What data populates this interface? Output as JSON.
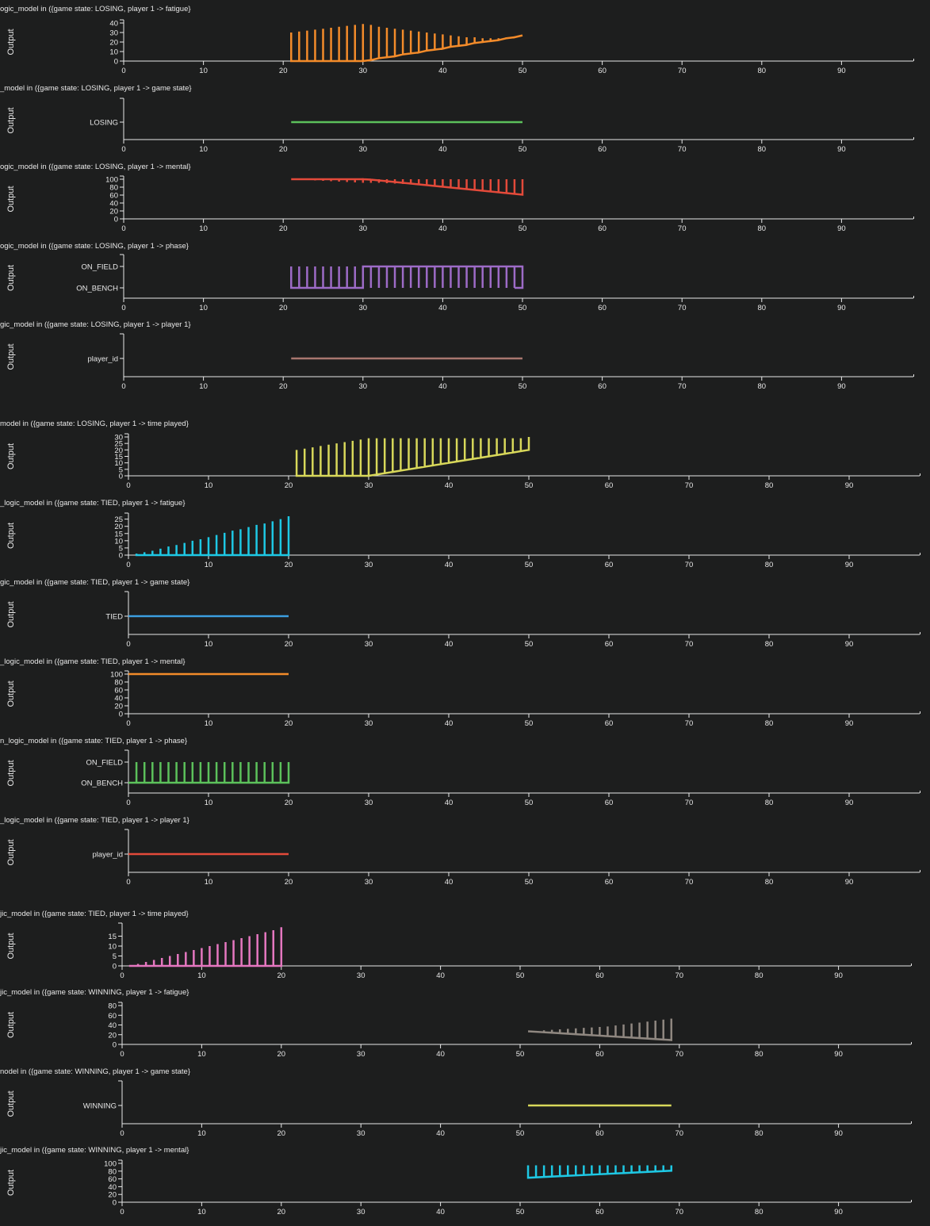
{
  "colors": {
    "background": "#1d1e1e",
    "axis": "#e8e8e8",
    "text": "#e8e8e8"
  },
  "chart_data": [
    {
      "id": "losing-fatigue",
      "type": "line",
      "title": "ogic_model in ({game state: LOSING, player 1 -> fatigue}",
      "ylabel": "Output",
      "xlim": [
        0,
        99
      ],
      "xticks": [
        0,
        10,
        20,
        30,
        40,
        50,
        60,
        70,
        80,
        90
      ],
      "ylim": [
        0,
        40
      ],
      "yticks": [
        0,
        10,
        20,
        30,
        40
      ],
      "color": "#f38b2a",
      "series": [
        {
          "x": [
            21,
            22,
            23,
            24,
            25,
            26,
            27,
            28,
            29,
            30,
            31,
            32,
            33,
            34,
            35,
            36,
            37,
            38,
            39,
            40,
            41,
            42,
            43,
            44,
            45,
            46,
            47,
            48,
            49,
            50
          ],
          "base": [
            0,
            0,
            0,
            0,
            0,
            0,
            0,
            0,
            0,
            0,
            1,
            3,
            4,
            5,
            7,
            8,
            9,
            11,
            12,
            13,
            15,
            16,
            17,
            19,
            20,
            21,
            22,
            24,
            25,
            27
          ],
          "peak": [
            30,
            31,
            32,
            33,
            34,
            35,
            36,
            37,
            38,
            39,
            38,
            36,
            35,
            34,
            33,
            32,
            31,
            30,
            29,
            28,
            27,
            26,
            25,
            25,
            24,
            24,
            24,
            25,
            26,
            27
          ]
        }
      ]
    },
    {
      "id": "losing-game-state",
      "type": "line",
      "title": "_model in ({game state: LOSING, player 1 -> game state}",
      "ylabel": "Output",
      "xlim": [
        0,
        99
      ],
      "xticks": [
        0,
        10,
        20,
        30,
        40,
        50,
        60,
        70,
        80,
        90
      ],
      "categories": [
        "LOSING"
      ],
      "color": "#5cc15b",
      "series": [
        {
          "x": [
            21,
            50
          ],
          "value": "LOSING"
        }
      ]
    },
    {
      "id": "losing-mental",
      "type": "line",
      "title": "ogic_model in ({game state: LOSING, player 1 -> mental}",
      "ylabel": "Output",
      "xlim": [
        0,
        99
      ],
      "xticks": [
        0,
        10,
        20,
        30,
        40,
        50,
        60,
        70,
        80,
        90
      ],
      "ylim": [
        0,
        100
      ],
      "yticks": [
        0,
        20,
        40,
        60,
        80,
        100
      ],
      "color": "#e34a3a",
      "series": [
        {
          "x": [
            21,
            22,
            23,
            24,
            25,
            26,
            27,
            28,
            29,
            30,
            31,
            32,
            33,
            34,
            35,
            36,
            37,
            38,
            39,
            40,
            41,
            42,
            43,
            44,
            45,
            46,
            47,
            48,
            49,
            50
          ],
          "base": [
            100,
            100,
            100,
            100,
            100,
            100,
            100,
            100,
            100,
            100,
            99,
            97,
            95,
            93,
            91,
            89,
            87,
            85,
            83,
            81,
            79,
            77,
            75,
            73,
            71,
            69,
            67,
            65,
            63,
            61
          ],
          "dip": [
            100,
            99,
            98,
            97,
            96,
            95,
            94,
            93,
            92,
            91,
            91,
            91,
            90,
            89,
            88,
            87,
            86,
            85,
            83,
            81,
            79,
            77,
            75,
            73,
            71,
            69,
            67,
            65,
            63,
            61
          ],
          "peak": [
            100,
            100,
            100,
            100,
            100,
            100,
            100,
            100,
            100,
            100,
            100,
            100,
            100,
            100,
            100,
            100,
            100,
            100,
            100,
            100,
            100,
            100,
            100,
            100,
            100,
            100,
            100,
            100,
            100,
            100
          ]
        }
      ]
    },
    {
      "id": "losing-phase",
      "type": "line",
      "title": "ogic_model in ({game state: LOSING, player 1 -> phase}",
      "ylabel": "Output",
      "xlim": [
        0,
        99
      ],
      "xticks": [
        0,
        10,
        20,
        30,
        40,
        50,
        60,
        70,
        80,
        90
      ],
      "categories": [
        "ON_BENCH",
        "ON_FIELD"
      ],
      "color": "#9d6bc7",
      "series": [
        {
          "x_start": 21,
          "x_end": 50,
          "switch": 30
        }
      ]
    },
    {
      "id": "losing-player",
      "type": "line",
      "title": "gic_model in ({game state: LOSING, player 1 -> player 1}",
      "ylabel": "Output",
      "xlim": [
        0,
        99
      ],
      "xticks": [
        0,
        10,
        20,
        30,
        40,
        50,
        60,
        70,
        80,
        90
      ],
      "categories": [
        "player_id"
      ],
      "color": "#a8776f",
      "series": [
        {
          "x": [
            21,
            50
          ],
          "value": "player_id"
        }
      ]
    },
    {
      "id": "losing-time-played",
      "type": "line",
      "title": "model in ({game state: LOSING, player 1 -> time played}",
      "ylabel": "Output",
      "xlim": [
        0,
        99
      ],
      "xticks": [
        0,
        10,
        20,
        30,
        40,
        50,
        60,
        70,
        80,
        90
      ],
      "ylim": [
        0,
        30
      ],
      "yticks": [
        0,
        5,
        10,
        15,
        20,
        25,
        30
      ],
      "color": "#d8d85a",
      "series": [
        {
          "x": [
            21,
            22,
            23,
            24,
            25,
            26,
            27,
            28,
            29,
            30,
            31,
            32,
            33,
            34,
            35,
            36,
            37,
            38,
            39,
            40,
            41,
            42,
            43,
            44,
            45,
            46,
            47,
            48,
            49,
            50
          ],
          "base": [
            0,
            0,
            0,
            0,
            0,
            0,
            0,
            0,
            0,
            0,
            1,
            2,
            3,
            4,
            5,
            6,
            7,
            8,
            9,
            10,
            11,
            12,
            13,
            14,
            15,
            16,
            17,
            18,
            19,
            20
          ],
          "peak": [
            20,
            21,
            22,
            23,
            24,
            25,
            26,
            27,
            28,
            29,
            29,
            29,
            29,
            29,
            29,
            29,
            29,
            29,
            29,
            29,
            29,
            29,
            29,
            29,
            29,
            29,
            29,
            29,
            29,
            30
          ]
        }
      ]
    },
    {
      "id": "tied-fatigue",
      "type": "line",
      "title": "_logic_model in ({game state: TIED, player 1 -> fatigue}",
      "ylabel": "Output",
      "xlim": [
        0,
        99
      ],
      "xticks": [
        0,
        10,
        20,
        30,
        40,
        50,
        60,
        70,
        80,
        90
      ],
      "ylim": [
        0,
        27
      ],
      "yticks": [
        0,
        5,
        10,
        15,
        20,
        25
      ],
      "color": "#1ec8e4",
      "series": [
        {
          "x": [
            1,
            2,
            3,
            4,
            5,
            6,
            7,
            8,
            9,
            10,
            11,
            12,
            13,
            14,
            15,
            16,
            17,
            18,
            19,
            20
          ],
          "base": [
            0,
            0,
            0,
            0,
            0,
            0,
            0,
            0,
            0,
            0,
            0,
            0,
            0,
            0,
            0,
            0,
            0,
            0,
            0,
            0
          ],
          "peak": [
            1,
            2,
            3,
            4.5,
            6,
            7,
            8.5,
            10,
            11,
            12.5,
            14,
            15.5,
            17,
            18,
            19.5,
            21,
            22,
            23.5,
            25,
            27
          ]
        }
      ]
    },
    {
      "id": "tied-game-state",
      "type": "line",
      "title": "gic_model in ({game state: TIED, player 1 -> game state}",
      "ylabel": "Output",
      "xlim": [
        0,
        99
      ],
      "xticks": [
        0,
        10,
        20,
        30,
        40,
        50,
        60,
        70,
        80,
        90
      ],
      "categories": [
        "TIED"
      ],
      "color": "#3c9ee0",
      "series": [
        {
          "x": [
            0,
            20
          ],
          "value": "TIED"
        }
      ]
    },
    {
      "id": "tied-mental",
      "type": "line",
      "title": "_logic_model in ({game state: TIED, player 1 -> mental}",
      "ylabel": "Output",
      "xlim": [
        0,
        99
      ],
      "xticks": [
        0,
        10,
        20,
        30,
        40,
        50,
        60,
        70,
        80,
        90
      ],
      "ylim": [
        0,
        100
      ],
      "yticks": [
        0,
        20,
        40,
        60,
        80,
        100
      ],
      "color": "#f38b2a",
      "series": [
        {
          "x": [
            0,
            20
          ],
          "value": 100
        }
      ]
    },
    {
      "id": "tied-phase",
      "type": "line",
      "title": "n_logic_model in ({game state: TIED, player 1 -> phase}",
      "ylabel": "Output",
      "xlim": [
        0,
        99
      ],
      "xticks": [
        0,
        10,
        20,
        30,
        40,
        50,
        60,
        70,
        80,
        90
      ],
      "categories": [
        "ON_BENCH",
        "ON_FIELD"
      ],
      "color": "#5cc15b",
      "series": [
        {
          "x_start": 0,
          "x_end": 20,
          "spikes": [
            1,
            2,
            3,
            4,
            5,
            6,
            7,
            8,
            9,
            10,
            11,
            12,
            13,
            14,
            15,
            16,
            17,
            18,
            19,
            20
          ]
        }
      ]
    },
    {
      "id": "tied-player",
      "type": "line",
      "title": "_logic_model in ({game state: TIED, player 1 -> player 1}",
      "ylabel": "Output",
      "xlim": [
        0,
        99
      ],
      "xticks": [
        0,
        10,
        20,
        30,
        40,
        50,
        60,
        70,
        80,
        90
      ],
      "categories": [
        "player_id"
      ],
      "color": "#e34a3a",
      "series": [
        {
          "x": [
            0,
            20
          ],
          "value": "player_id"
        }
      ]
    },
    {
      "id": "tied-time-played",
      "type": "line",
      "title": "jic_model in ({game state: TIED, player 1 -> time played}",
      "ylabel": "Output",
      "xlim": [
        0,
        99
      ],
      "xticks": [
        0,
        10,
        20,
        30,
        40,
        50,
        60,
        70,
        80,
        90
      ],
      "ylim": [
        0,
        20
      ],
      "yticks": [
        0,
        5,
        10,
        15
      ],
      "color": "#e577c0",
      "series": [
        {
          "x": [
            1,
            2,
            3,
            4,
            5,
            6,
            7,
            8,
            9,
            10,
            11,
            12,
            13,
            14,
            15,
            16,
            17,
            18,
            19,
            20
          ],
          "base": [
            0,
            0,
            0,
            0,
            0,
            0,
            0,
            0,
            0,
            0,
            0,
            0,
            0,
            0,
            0,
            0,
            0,
            0,
            0,
            0
          ],
          "peak": [
            0.5,
            1,
            2,
            3,
            4,
            5,
            6,
            7,
            8,
            9,
            10,
            11,
            12,
            13,
            14,
            15,
            16,
            17,
            18,
            19.5
          ]
        }
      ]
    },
    {
      "id": "winning-fatigue",
      "type": "line",
      "title": "jic_model in ({game state: WINNING, player 1 -> fatigue}",
      "ylabel": "Output",
      "xlim": [
        0,
        99
      ],
      "xticks": [
        0,
        10,
        20,
        30,
        40,
        50,
        60,
        70,
        80,
        90
      ],
      "ylim": [
        0,
        80
      ],
      "yticks": [
        0,
        20,
        40,
        60,
        80
      ],
      "color": "#8f8780",
      "series": [
        {
          "x": [
            51,
            52,
            53,
            54,
            55,
            56,
            57,
            58,
            59,
            60,
            61,
            62,
            63,
            64,
            65,
            66,
            67,
            68,
            69
          ],
          "base": [
            27,
            26,
            25,
            24,
            23,
            22,
            21,
            20,
            19,
            18,
            17,
            16,
            15,
            14,
            13,
            12,
            11,
            10,
            9
          ],
          "peak": [
            27,
            28,
            29,
            30,
            31,
            32,
            33,
            34,
            35,
            36,
            37,
            39,
            41,
            43,
            45,
            47,
            49,
            51,
            53
          ]
        }
      ]
    },
    {
      "id": "winning-game-state",
      "type": "line",
      "title": "nodel in ({game state: WINNING, player 1 -> game state}",
      "ylabel": "Output",
      "xlim": [
        0,
        99
      ],
      "xticks": [
        0,
        10,
        20,
        30,
        40,
        50,
        60,
        70,
        80,
        90
      ],
      "categories": [
        "WINNING"
      ],
      "color": "#d8d85a",
      "series": [
        {
          "x": [
            51,
            69
          ],
          "value": "WINNING"
        }
      ]
    },
    {
      "id": "winning-mental",
      "type": "line",
      "title": "jic_model in ({game state: WINNING, player 1 -> mental}",
      "ylabel": "Output",
      "xlim": [
        0,
        99
      ],
      "xticks": [
        0,
        10,
        20,
        30,
        40,
        50,
        60,
        70,
        80,
        90
      ],
      "ylim": [
        0,
        100
      ],
      "yticks": [
        0,
        20,
        40,
        60,
        80,
        100
      ],
      "color": "#1ec8e4",
      "series": [
        {
          "x": [
            51,
            52,
            53,
            54,
            55,
            56,
            57,
            58,
            59,
            60,
            61,
            62,
            63,
            64,
            65,
            66,
            67,
            68,
            69
          ],
          "base": [
            63,
            64,
            65,
            66,
            67,
            68,
            69,
            70,
            71,
            72,
            73,
            74,
            75,
            76,
            77,
            78,
            79,
            80,
            81
          ],
          "peak": [
            95,
            95,
            95,
            95,
            95,
            95,
            95,
            95,
            95,
            95,
            95,
            95,
            95,
            95,
            95,
            95,
            95,
            95,
            95
          ]
        }
      ]
    }
  ]
}
